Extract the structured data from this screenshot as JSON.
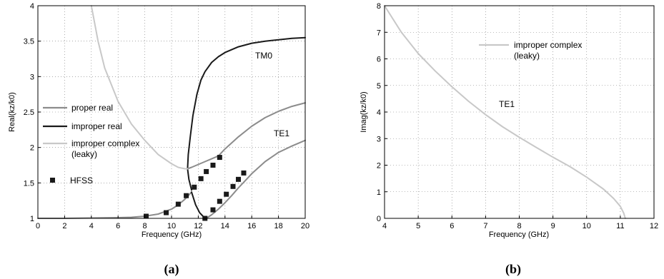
{
  "chart_data": [
    {
      "type": "line",
      "caption": "(a)",
      "title": "",
      "xlabel": "Frequency (GHz)",
      "ylabel": "Real(kz/k0)",
      "xlim": [
        0,
        20
      ],
      "ylim": [
        1,
        4
      ],
      "xticks": [
        "0",
        "2",
        "4",
        "6",
        "8",
        "10",
        "12",
        "14",
        "16",
        "18",
        "20"
      ],
      "yticks": [
        "1",
        "1.5",
        "2",
        "2.5",
        "3",
        "3.5",
        "4"
      ],
      "grid": true,
      "legend_position": "center-left",
      "legend": [
        {
          "label": "proper real",
          "color": "#8c8c8c",
          "marker": "line"
        },
        {
          "label": "improper real",
          "color": "#1a1a1a",
          "marker": "line"
        },
        {
          "label": "improper complex",
          "label2": "(leaky)",
          "color": "#c8c8c8",
          "marker": "line"
        },
        {
          "label": "HFSS",
          "color": "#1a1a1a",
          "marker": "square"
        }
      ],
      "annotations": [
        {
          "text": "TM0",
          "x": 14.5,
          "y": 2.82
        },
        {
          "text": "TE1",
          "x": 17.5,
          "y": 1.75
        }
      ],
      "series": [
        {
          "id": "proper-real-te1",
          "color": "#8c8c8c",
          "width": 2,
          "x": [
            0,
            2,
            4,
            6,
            7,
            8,
            9,
            10,
            10.5,
            11,
            11.3,
            11.5
          ],
          "y": [
            1.0,
            1.0,
            1.005,
            1.01,
            1.015,
            1.03,
            1.06,
            1.13,
            1.19,
            1.27,
            1.33,
            1.37
          ]
        },
        {
          "id": "improper-real",
          "color": "#1a1a1a",
          "width": 2,
          "x": [
            11.5,
            11.3,
            11.2,
            11.25,
            11.4,
            11.6,
            11.9,
            12.2,
            12.5,
            13.0,
            13.5,
            14.0,
            15.0,
            16.0,
            17.0,
            18.0,
            19.0,
            20.0
          ],
          "y": [
            1.4,
            1.55,
            1.7,
            1.9,
            2.15,
            2.45,
            2.75,
            2.95,
            3.07,
            3.2,
            3.28,
            3.34,
            3.42,
            3.47,
            3.5,
            3.52,
            3.54,
            3.55
          ]
        },
        {
          "id": "improper-real-lower",
          "color": "#1a1a1a",
          "width": 2,
          "x": [
            11.5,
            11.8,
            12.1,
            12.4,
            12.6
          ],
          "y": [
            1.37,
            1.19,
            1.08,
            1.02,
            1.0
          ]
        },
        {
          "id": "proper-real-tm0",
          "color": "#8c8c8c",
          "width": 2,
          "x": [
            11.2,
            11.5,
            12.0,
            12.5,
            13.0,
            13.5,
            14.0,
            15.0,
            16.0,
            17.0,
            18.0,
            19.0,
            20.0
          ],
          "y": [
            1.7,
            1.72,
            1.76,
            1.8,
            1.84,
            1.88,
            1.98,
            2.15,
            2.3,
            2.42,
            2.51,
            2.58,
            2.63
          ]
        },
        {
          "id": "proper-real-te1-upper",
          "color": "#8c8c8c",
          "width": 2,
          "x": [
            12.6,
            13.0,
            13.5,
            14.0,
            14.5,
            15.0,
            15.5,
            16.0,
            17.0,
            18.0,
            19.0,
            20.0
          ],
          "y": [
            1.0,
            1.05,
            1.13,
            1.22,
            1.32,
            1.43,
            1.53,
            1.63,
            1.8,
            1.93,
            2.02,
            2.1
          ]
        },
        {
          "id": "improper-complex",
          "color": "#c8c8c8",
          "width": 2,
          "x": [
            4.0,
            4.5,
            5.0,
            6.0,
            7.0,
            8.0,
            9.0,
            10.0,
            10.5,
            11.0,
            11.2
          ],
          "y": [
            4.0,
            3.5,
            3.12,
            2.65,
            2.33,
            2.1,
            1.9,
            1.77,
            1.72,
            1.7,
            1.7
          ]
        }
      ],
      "hfss": {
        "color": "#1a1a1a",
        "x": [
          8.1,
          9.6,
          10.5,
          11.1,
          11.7,
          12.2,
          12.6,
          13.1,
          13.6,
          12.5,
          13.1,
          13.6,
          14.1,
          14.6,
          15.0,
          15.4
        ],
        "y": [
          1.03,
          1.08,
          1.2,
          1.32,
          1.44,
          1.56,
          1.66,
          1.75,
          1.86,
          1.0,
          1.12,
          1.24,
          1.34,
          1.45,
          1.55,
          1.64
        ]
      }
    },
    {
      "type": "line",
      "caption": "(b)",
      "title": "",
      "xlabel": "Frequency (GHz)",
      "ylabel": "Imag(kz/k0)",
      "xlim": [
        4,
        12
      ],
      "ylim": [
        0,
        8
      ],
      "xticks": [
        "4",
        "5",
        "6",
        "7",
        "8",
        "9",
        "10",
        "11",
        "12"
      ],
      "yticks": [
        "0",
        "1",
        "2",
        "3",
        "4",
        "5",
        "6",
        "7",
        "8"
      ],
      "grid": true,
      "legend_position": "top-center",
      "legend": [
        {
          "label": "improper complex",
          "label2": "(leaky)",
          "color": "#c8c8c8",
          "marker": "line"
        }
      ],
      "annotations": [
        {
          "text": "TE1",
          "x": 7.25,
          "y": 4.15
        }
      ],
      "series": [
        {
          "id": "improper-complex-imag",
          "color": "#c8c8c8",
          "width": 2,
          "x": [
            4.0,
            4.5,
            5.0,
            5.5,
            6.0,
            6.5,
            7.0,
            7.5,
            8.0,
            8.5,
            9.0,
            9.5,
            10.0,
            10.5,
            10.8,
            11.0,
            11.1,
            11.15
          ],
          "y": [
            8.0,
            7.0,
            6.2,
            5.55,
            4.95,
            4.4,
            3.9,
            3.45,
            3.05,
            2.67,
            2.3,
            1.95,
            1.55,
            1.1,
            0.75,
            0.45,
            0.2,
            0.0
          ]
        }
      ]
    }
  ]
}
